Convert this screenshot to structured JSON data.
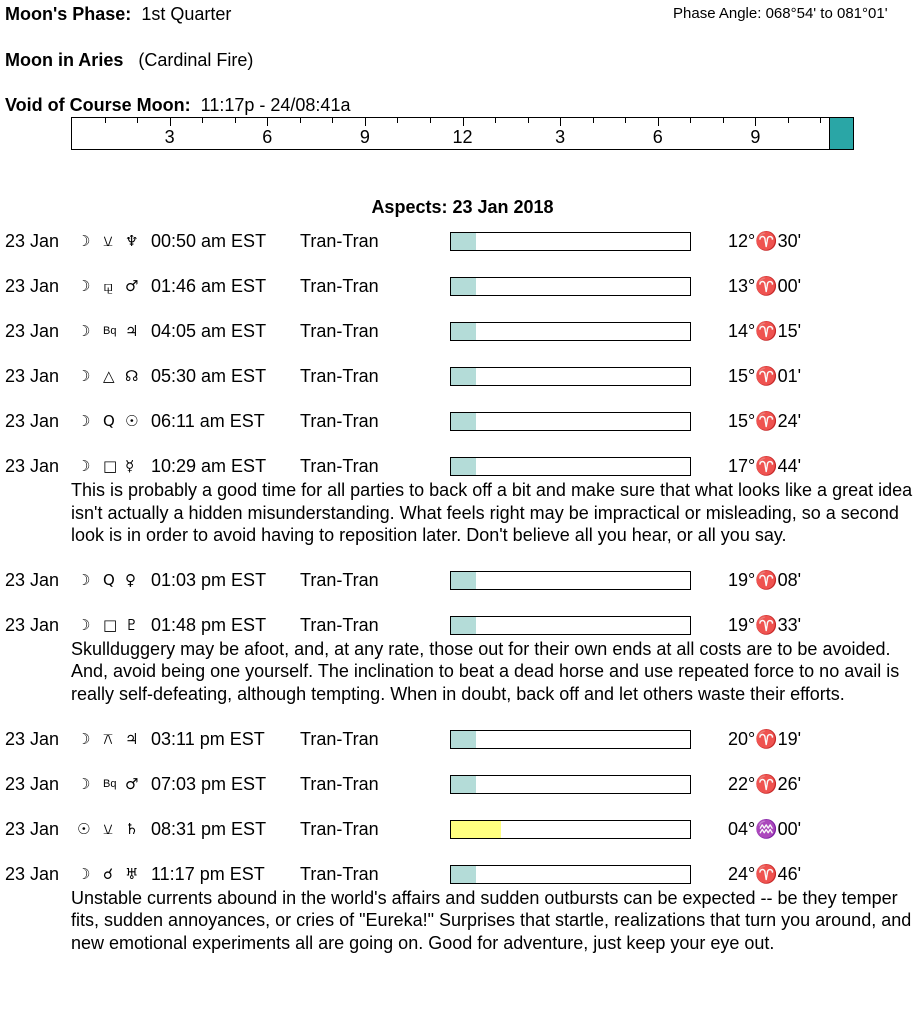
{
  "header": {
    "phase_label": "Moon's Phase:",
    "phase": "1st Quarter",
    "phase_angle": "Phase Angle:  068°54' to 081°01'",
    "moon_sign_label": "Moon in Aries",
    "moon_sign_note": "(Cardinal Fire)",
    "void_label": "Void of Course Moon:",
    "void_time": "11:17p - 24/08:41a"
  },
  "timeline": {
    "labels": [
      "3",
      "6",
      "9",
      "12",
      "3",
      "6",
      "9"
    ],
    "void_color": "#2aa6a6"
  },
  "aspects": {
    "title": "Aspects: 23 Jan 2018",
    "rows": [
      {
        "date": "23 Jan",
        "glyphs": [
          "☽",
          "⚺",
          "♆"
        ],
        "time": "00:50 am EST",
        "kind": "Tran-Tran",
        "position": "12°♈30'",
        "bar_color": "#b4dcd8"
      },
      {
        "date": "23 Jan",
        "glyphs": [
          "☽",
          "⚼",
          "♂"
        ],
        "time": "01:46 am EST",
        "kind": "Tran-Tran",
        "position": "13°♈00'",
        "bar_color": "#b4dcd8"
      },
      {
        "date": "23 Jan",
        "glyphs": [
          "☽",
          "Bq",
          "♃"
        ],
        "time": "04:05 am EST",
        "kind": "Tran-Tran",
        "position": "14°♈15'",
        "bar_color": "#b4dcd8"
      },
      {
        "date": "23 Jan",
        "glyphs": [
          "☽",
          "△",
          "☊"
        ],
        "time": "05:30 am EST",
        "kind": "Tran-Tran",
        "position": "15°♈01'",
        "bar_color": "#b4dcd8"
      },
      {
        "date": "23 Jan",
        "glyphs": [
          "☽",
          "Q",
          "☉"
        ],
        "time": "06:11 am EST",
        "kind": "Tran-Tran",
        "position": "15°♈24'",
        "bar_color": "#b4dcd8"
      },
      {
        "date": "23 Jan",
        "glyphs": [
          "☽",
          "□",
          "☿"
        ],
        "time": "10:29 am EST",
        "kind": "Tran-Tran",
        "position": "17°♈44'",
        "bar_color": "#b4dcd8",
        "description": "This is probably a good time for all parties to back off a bit and make sure that what looks like a great idea isn't actually a hidden misunderstanding. What feels right may be impractical or misleading, so a second look is in order to avoid having to reposition later. Don't believe all you hear, or all you say."
      },
      {
        "date": "23 Jan",
        "glyphs": [
          "☽",
          "Q",
          "♀"
        ],
        "time": "01:03 pm EST",
        "kind": "Tran-Tran",
        "position": "19°♈08'",
        "bar_color": "#b4dcd8"
      },
      {
        "date": "23 Jan",
        "glyphs": [
          "☽",
          "□",
          "♇"
        ],
        "time": "01:48 pm EST",
        "kind": "Tran-Tran",
        "position": "19°♈33'",
        "bar_color": "#b4dcd8",
        "description": "Skullduggery may be afoot, and, at any rate, those out for their own ends at all costs are to be avoided. And, avoid being one yourself. The inclination to beat a dead horse and use repeated force to no avail is really self-defeating, although tempting. When in doubt, back off and let others waste their efforts."
      },
      {
        "date": "23 Jan",
        "glyphs": [
          "☽",
          "⚻",
          "♃"
        ],
        "time": "03:11 pm EST",
        "kind": "Tran-Tran",
        "position": "20°♈19'",
        "bar_color": "#b4dcd8"
      },
      {
        "date": "23 Jan",
        "glyphs": [
          "☽",
          "Bq",
          "♂"
        ],
        "time": "07:03 pm EST",
        "kind": "Tran-Tran",
        "position": "22°♈26'",
        "bar_color": "#b4dcd8"
      },
      {
        "date": "23 Jan",
        "glyphs": [
          "☉",
          "⚺",
          "♄"
        ],
        "time": "08:31 pm EST",
        "kind": "Tran-Tran",
        "position": "04°♒00'",
        "bar_color": "#ffff80"
      },
      {
        "date": "23 Jan",
        "glyphs": [
          "☽",
          "☌",
          "♅"
        ],
        "time": "11:17 pm EST",
        "kind": "Tran-Tran",
        "position": "24°♈46'",
        "bar_color": "#b4dcd8",
        "description": "Unstable currents abound in the world's affairs and sudden outbursts can be expected -- be they temper fits, sudden annoyances, or cries of \"Eureka!\" Surprises that startle, realizations that turn you around, and new emotional experiments all are going on. Good for adventure, just keep your eye out."
      }
    ]
  }
}
